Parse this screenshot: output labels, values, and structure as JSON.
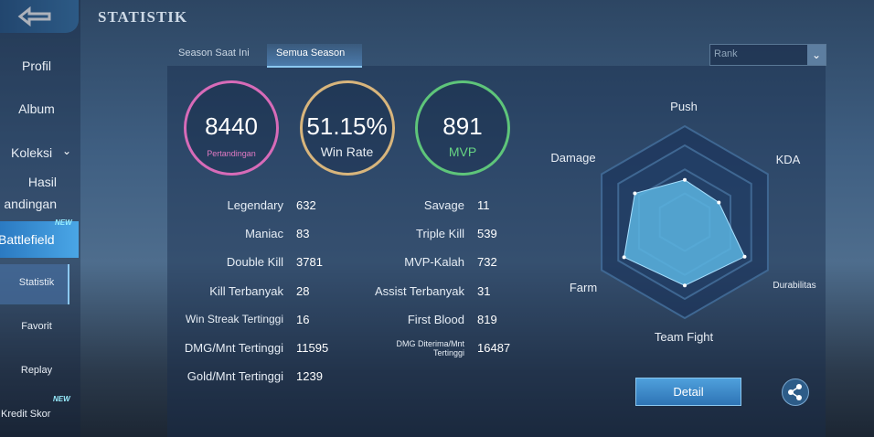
{
  "header": {
    "title": "STATISTIK"
  },
  "sidebar": {
    "items": [
      {
        "label": "Profil"
      },
      {
        "label": "Album"
      },
      {
        "label": "Koleksi"
      },
      {
        "label": "Hasil",
        "label2": "andingan"
      },
      {
        "label": "Battlefield",
        "badge": "NEW"
      },
      {
        "label": "Statistik"
      },
      {
        "label": "Favorit"
      },
      {
        "label": "Replay"
      },
      {
        "label": "Kredit Skor",
        "badge": "NEW"
      }
    ]
  },
  "tabs": [
    "Season Saat Ini",
    "Semua Season"
  ],
  "filter": "Rank",
  "summary": [
    {
      "value": "8440",
      "label": "Pertandingan"
    },
    {
      "value": "51.15%",
      "label": "Win Rate"
    },
    {
      "value": "891",
      "label": "MVP"
    }
  ],
  "stats": {
    "left": [
      [
        "Legendary",
        "632"
      ],
      [
        "Maniac",
        "83"
      ],
      [
        "Double Kill",
        "3781"
      ],
      [
        "Kill Terbanyak",
        "28"
      ],
      [
        "Win Streak Tertinggi",
        "16"
      ],
      [
        "DMG/Mnt Tertinggi",
        "11595"
      ],
      [
        "Gold/Mnt Tertinggi",
        "1239"
      ]
    ],
    "right": [
      [
        "Savage",
        "11"
      ],
      [
        "Triple Kill",
        "539"
      ],
      [
        "MVP-Kalah",
        "732"
      ],
      [
        "Assist Terbanyak",
        "31"
      ],
      [
        "First Blood",
        "819"
      ],
      [
        "DMG Diterima/Mnt Tertinggi",
        "16487"
      ]
    ]
  },
  "radar": {
    "range": [
      0,
      100
    ],
    "axes": [
      {
        "label": "Push",
        "value": 44
      },
      {
        "label": "KDA",
        "value": 41
      },
      {
        "label": "Durabilitas",
        "value": 72
      },
      {
        "label": "Team Fight",
        "value": 66
      },
      {
        "label": "Farm",
        "value": 73
      },
      {
        "label": "Damage",
        "value": 60
      }
    ]
  },
  "detail_button": "Detail"
}
